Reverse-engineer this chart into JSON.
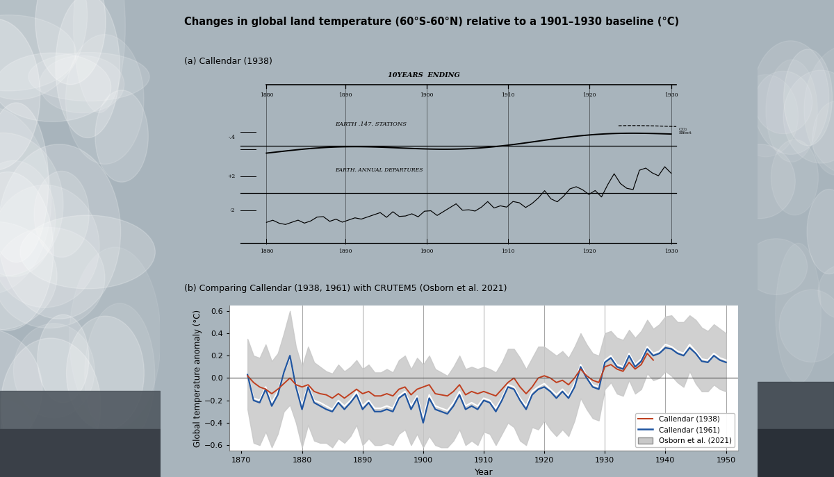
{
  "title": "Changes in global land temperature (60°S-60°N) relative to a 1901–1930 baseline (°C)",
  "subtitle_a": "(a) Callendar (1938)",
  "subtitle_b": "(b) Comparing Callendar (1938, 1961) with CRUTEM5 (Osborn et al. 2021)",
  "xlabel": "Year",
  "ylabel": "Global temperature anomaly (°C)",
  "ylim": [
    -0.65,
    0.65
  ],
  "yticks": [
    -0.6,
    -0.4,
    -0.2,
    0.0,
    0.2,
    0.4,
    0.6
  ],
  "xlim": [
    1868,
    1952
  ],
  "xticks": [
    1870,
    1880,
    1890,
    1900,
    1910,
    1920,
    1930,
    1940,
    1950
  ],
  "vlines": [
    1880,
    1890,
    1900,
    1910,
    1920,
    1930,
    1940,
    1950
  ],
  "bg_color": "#ffffff",
  "panel_bg": "#ffffff",
  "callendar1938_color": "#c04020",
  "callendar1961_color": "#2055a0",
  "osborn_fill_color": "#c8c8c8",
  "osborn_line_color": "#ffffff",
  "photo_left_color": "#b0b8c0",
  "photo_right_color": "#909aa0",
  "callendar1938_years": [
    1871,
    1872,
    1873,
    1874,
    1875,
    1876,
    1877,
    1878,
    1879,
    1880,
    1881,
    1882,
    1883,
    1884,
    1885,
    1886,
    1887,
    1888,
    1889,
    1890,
    1891,
    1892,
    1893,
    1894,
    1895,
    1896,
    1897,
    1898,
    1899,
    1900,
    1901,
    1902,
    1903,
    1904,
    1905,
    1906,
    1907,
    1908,
    1909,
    1910,
    1911,
    1912,
    1913,
    1914,
    1915,
    1916,
    1917,
    1918,
    1919,
    1920,
    1921,
    1922,
    1923,
    1924,
    1925,
    1926,
    1927,
    1928,
    1929,
    1930,
    1931,
    1932,
    1933,
    1934,
    1935,
    1936,
    1937,
    1938
  ],
  "callendar1938_vals": [
    0.02,
    -0.04,
    -0.08,
    -0.1,
    -0.14,
    -0.1,
    -0.05,
    0.0,
    -0.06,
    -0.08,
    -0.06,
    -0.12,
    -0.14,
    -0.15,
    -0.18,
    -0.14,
    -0.18,
    -0.14,
    -0.1,
    -0.14,
    -0.12,
    -0.16,
    -0.16,
    -0.14,
    -0.16,
    -0.1,
    -0.08,
    -0.15,
    -0.1,
    -0.08,
    -0.06,
    -0.14,
    -0.15,
    -0.16,
    -0.12,
    -0.06,
    -0.15,
    -0.12,
    -0.14,
    -0.12,
    -0.14,
    -0.16,
    -0.1,
    -0.04,
    0.0,
    -0.08,
    -0.14,
    -0.08,
    0.0,
    0.02,
    0.0,
    -0.04,
    -0.02,
    -0.06,
    0.0,
    0.08,
    0.02,
    -0.02,
    -0.04,
    0.1,
    0.12,
    0.08,
    0.06,
    0.14,
    0.08,
    0.12,
    0.22,
    0.16
  ],
  "callendar1961_years": [
    1871,
    1872,
    1873,
    1874,
    1875,
    1876,
    1877,
    1878,
    1879,
    1880,
    1881,
    1882,
    1883,
    1884,
    1885,
    1886,
    1887,
    1888,
    1889,
    1890,
    1891,
    1892,
    1893,
    1894,
    1895,
    1896,
    1897,
    1898,
    1899,
    1900,
    1901,
    1902,
    1903,
    1904,
    1905,
    1906,
    1907,
    1908,
    1909,
    1910,
    1911,
    1912,
    1913,
    1914,
    1915,
    1916,
    1917,
    1918,
    1919,
    1920,
    1921,
    1922,
    1923,
    1924,
    1925,
    1926,
    1927,
    1928,
    1929,
    1930,
    1931,
    1932,
    1933,
    1934,
    1935,
    1936,
    1937,
    1938,
    1939,
    1940,
    1941,
    1942,
    1943,
    1944,
    1945,
    1946,
    1947,
    1948,
    1949,
    1950
  ],
  "callendar1961_vals": [
    0.03,
    -0.2,
    -0.22,
    -0.1,
    -0.25,
    -0.15,
    0.05,
    0.2,
    -0.08,
    -0.28,
    -0.08,
    -0.22,
    -0.25,
    -0.28,
    -0.3,
    -0.22,
    -0.28,
    -0.22,
    -0.15,
    -0.28,
    -0.22,
    -0.3,
    -0.3,
    -0.28,
    -0.3,
    -0.18,
    -0.14,
    -0.28,
    -0.18,
    -0.4,
    -0.18,
    -0.28,
    -0.3,
    -0.32,
    -0.25,
    -0.15,
    -0.28,
    -0.25,
    -0.28,
    -0.2,
    -0.22,
    -0.3,
    -0.2,
    -0.08,
    -0.1,
    -0.2,
    -0.28,
    -0.15,
    -0.1,
    -0.08,
    -0.12,
    -0.18,
    -0.12,
    -0.18,
    -0.08,
    0.1,
    0.0,
    -0.08,
    -0.1,
    0.14,
    0.18,
    0.1,
    0.08,
    0.2,
    0.1,
    0.15,
    0.26,
    0.2,
    0.22,
    0.27,
    0.26,
    0.22,
    0.2,
    0.27,
    0.22,
    0.15,
    0.14,
    0.2,
    0.16,
    0.14
  ],
  "osborn_years": [
    1871,
    1872,
    1873,
    1874,
    1875,
    1876,
    1877,
    1878,
    1879,
    1880,
    1881,
    1882,
    1883,
    1884,
    1885,
    1886,
    1887,
    1888,
    1889,
    1890,
    1891,
    1892,
    1893,
    1894,
    1895,
    1896,
    1897,
    1898,
    1899,
    1900,
    1901,
    1902,
    1903,
    1904,
    1905,
    1906,
    1907,
    1908,
    1909,
    1910,
    1911,
    1912,
    1913,
    1914,
    1915,
    1916,
    1917,
    1918,
    1919,
    1920,
    1921,
    1922,
    1923,
    1924,
    1925,
    1926,
    1927,
    1928,
    1929,
    1930,
    1931,
    1932,
    1933,
    1934,
    1935,
    1936,
    1937,
    1938,
    1939,
    1940,
    1941,
    1942,
    1943,
    1944,
    1945,
    1946,
    1947,
    1948,
    1949,
    1950
  ],
  "osborn_center": [
    0.03,
    -0.18,
    -0.2,
    -0.08,
    -0.22,
    -0.12,
    0.05,
    0.18,
    -0.06,
    -0.25,
    -0.06,
    -0.2,
    -0.22,
    -0.25,
    -0.28,
    -0.2,
    -0.25,
    -0.2,
    -0.12,
    -0.25,
    -0.2,
    -0.27,
    -0.27,
    -0.25,
    -0.27,
    -0.16,
    -0.12,
    -0.25,
    -0.16,
    -0.36,
    -0.15,
    -0.25,
    -0.27,
    -0.29,
    -0.22,
    -0.12,
    -0.25,
    -0.22,
    -0.25,
    -0.18,
    -0.2,
    -0.27,
    -0.18,
    -0.06,
    -0.08,
    -0.18,
    -0.25,
    -0.12,
    -0.08,
    -0.05,
    -0.1,
    -0.15,
    -0.1,
    -0.16,
    -0.05,
    0.12,
    0.02,
    -0.06,
    -0.08,
    0.16,
    0.2,
    0.12,
    0.1,
    0.22,
    0.12,
    0.17,
    0.28,
    0.22,
    0.24,
    0.3,
    0.28,
    0.24,
    0.22,
    0.3,
    0.24,
    0.17,
    0.16,
    0.22,
    0.18,
    0.16
  ],
  "osborn_upper": [
    0.35,
    0.2,
    0.18,
    0.3,
    0.15,
    0.22,
    0.4,
    0.6,
    0.28,
    0.1,
    0.28,
    0.14,
    0.1,
    0.06,
    0.04,
    0.12,
    0.06,
    0.1,
    0.16,
    0.08,
    0.12,
    0.05,
    0.05,
    0.08,
    0.05,
    0.16,
    0.2,
    0.08,
    0.18,
    0.12,
    0.2,
    0.08,
    0.05,
    0.02,
    0.1,
    0.2,
    0.08,
    0.1,
    0.08,
    0.1,
    0.08,
    0.05,
    0.14,
    0.26,
    0.26,
    0.18,
    0.08,
    0.18,
    0.28,
    0.28,
    0.24,
    0.2,
    0.24,
    0.18,
    0.28,
    0.4,
    0.3,
    0.22,
    0.2,
    0.4,
    0.42,
    0.36,
    0.34,
    0.43,
    0.36,
    0.42,
    0.52,
    0.44,
    0.48,
    0.55,
    0.56,
    0.5,
    0.5,
    0.56,
    0.52,
    0.45,
    0.42,
    0.48,
    0.44,
    0.4
  ],
  "osborn_lower": [
    -0.28,
    -0.58,
    -0.6,
    -0.48,
    -0.62,
    -0.5,
    -0.3,
    -0.24,
    -0.4,
    -0.62,
    -0.42,
    -0.56,
    -0.58,
    -0.58,
    -0.62,
    -0.54,
    -0.58,
    -0.52,
    -0.42,
    -0.6,
    -0.54,
    -0.6,
    -0.6,
    -0.58,
    -0.6,
    -0.5,
    -0.46,
    -0.6,
    -0.5,
    -0.62,
    -0.52,
    -0.6,
    -0.62,
    -0.62,
    -0.56,
    -0.46,
    -0.6,
    -0.56,
    -0.6,
    -0.48,
    -0.5,
    -0.6,
    -0.5,
    -0.4,
    -0.44,
    -0.56,
    -0.6,
    -0.44,
    -0.46,
    -0.38,
    -0.46,
    -0.52,
    -0.46,
    -0.52,
    -0.38,
    -0.18,
    -0.28,
    -0.36,
    -0.38,
    -0.1,
    -0.04,
    -0.14,
    -0.16,
    -0.02,
    -0.14,
    -0.1,
    0.04,
    -0.02,
    0.0,
    0.06,
    0.02,
    -0.04,
    -0.08,
    0.06,
    -0.05,
    -0.12,
    -0.12,
    -0.06,
    -0.1,
    -0.12
  ]
}
